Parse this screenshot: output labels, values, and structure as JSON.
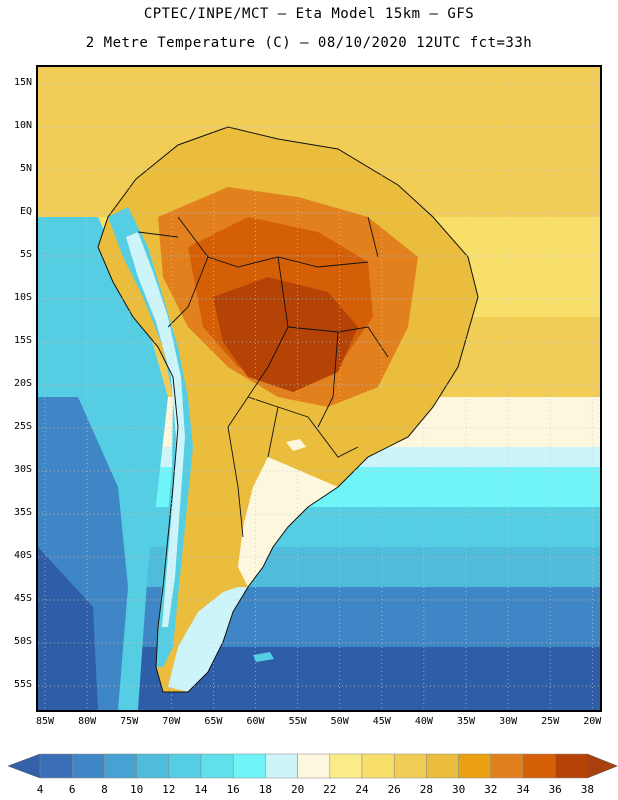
{
  "header": {
    "line1": "CPTEC/INPE/MCT –  Eta Model 15km – GFS",
    "line2": "2 Metre Temperature (C) – 08/10/2020 12UTC fct=33h"
  },
  "axes": {
    "lat_labels": [
      "15N",
      "10N",
      "5N",
      "EQ",
      "5S",
      "10S",
      "15S",
      "20S",
      "25S",
      "30S",
      "35S",
      "40S",
      "45S",
      "50S",
      "55S"
    ],
    "lon_labels": [
      "85W",
      "80W",
      "75W",
      "70W",
      "65W",
      "60W",
      "55W",
      "50W",
      "45W",
      "40W",
      "35W",
      "30W",
      "25W",
      "20W"
    ]
  },
  "colorbar": {
    "labels": [
      "4",
      "6",
      "8",
      "10",
      "12",
      "14",
      "16",
      "18",
      "20",
      "22",
      "24",
      "26",
      "28",
      "30",
      "32",
      "34",
      "36",
      "38"
    ],
    "colors": [
      "#3a6fb8",
      "#3f86c6",
      "#45a2d2",
      "#4fbcdc",
      "#55cde3",
      "#5fe0ea",
      "#6ff4f8",
      "#cdf4f8",
      "#fdf7de",
      "#fbec8a",
      "#f8df6a",
      "#f1cd55",
      "#ebbd3c",
      "#eba012",
      "#e2801d",
      "#d55f07",
      "#b54306"
    ],
    "low_extend_color": "#3461a8",
    "high_extend_color": "#a8400d"
  },
  "map": {
    "region": "South America",
    "field": "2 Metre Temperature",
    "palette": {
      "ocean_cold": "#2e5ea8",
      "ocean_cool": "#3f86c6",
      "ocean_mild": "#55cde3",
      "ocean_cyan": "#6ff4f8",
      "ocean_warm": "#f8df6a",
      "ocean_tropical": "#f1cd55",
      "land_hot": "#b54306",
      "land_very_warm": "#d55f07",
      "land_warm": "#e2801d",
      "land_mild": "#ebbd3c",
      "land_cool": "#fdf7de",
      "andes_cold": "#55cde3",
      "borders": "#111111",
      "gridlines": "#c8c8c8"
    }
  }
}
